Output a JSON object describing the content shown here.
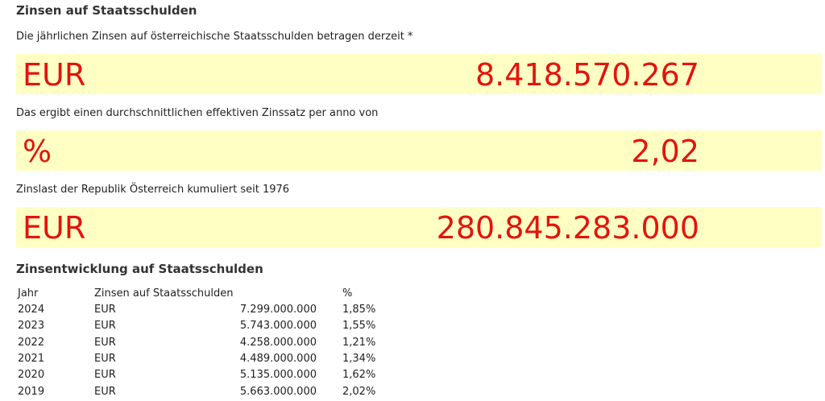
{
  "header": {
    "title": "Zinsen auf Staatsschulden"
  },
  "sections": [
    {
      "label": "Die jährlichen Zinsen auf österreichische Staatsschulden betragen derzeit *",
      "unit": "EUR",
      "value": "8.418.570.267"
    },
    {
      "label": "Das ergibt einen durchschnittlichen effektiven Zinssatz per anno von",
      "unit": "%",
      "value": "2,02"
    },
    {
      "label": "Zinslast der Republik Österreich kumuliert seit 1976",
      "unit": "EUR",
      "value": "280.845.283.000"
    }
  ],
  "table": {
    "title": "Zinsentwicklung auf Staatsschulden",
    "header": [
      "Jahr",
      "Zinsen auf Staatsschulden",
      "%"
    ],
    "rows": [
      [
        "2024",
        "EUR",
        "7.299.000.000",
        "1,85%"
      ],
      [
        "2023",
        "EUR",
        "5.743.000.000",
        "1,55%"
      ],
      [
        "2022",
        "EUR",
        "4.258.000.000",
        "1,21%"
      ],
      [
        "2021",
        "EUR",
        "4.489.000.000",
        "1,34%"
      ],
      [
        "2020",
        "EUR",
        "5.135.000.000",
        "1,62%"
      ],
      [
        "2019",
        "EUR",
        "5.663.000.000",
        "2,02%"
      ]
    ]
  }
}
